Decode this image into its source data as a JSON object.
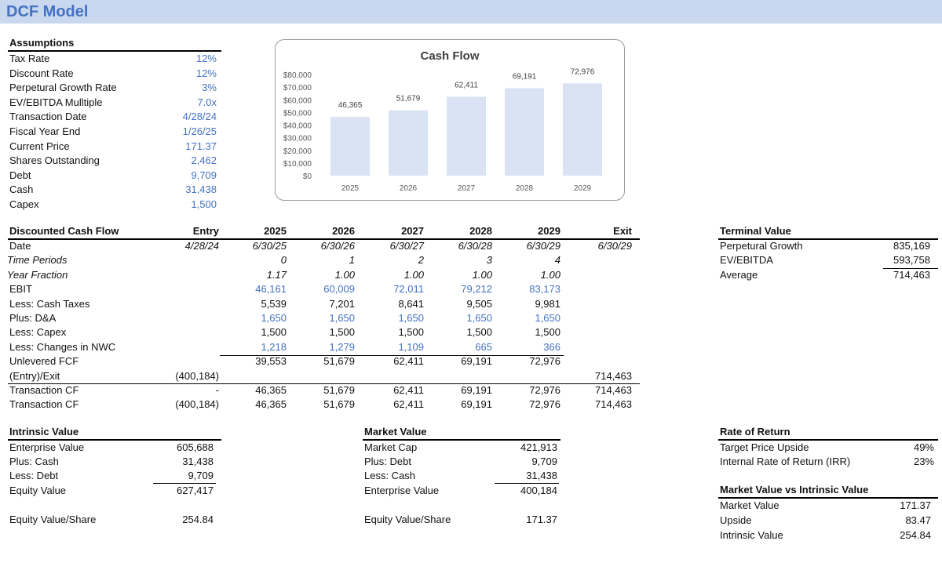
{
  "title": "DCF Model",
  "assumptions": {
    "header": "Assumptions",
    "rows": [
      {
        "label": "Tax Rate",
        "value": "12%",
        "blue": true
      },
      {
        "label": "Discount Rate",
        "value": "12%",
        "blue": true
      },
      {
        "label": "Perpetural Growth Rate",
        "value": "3%",
        "blue": true
      },
      {
        "label": "EV/EBITDA Mulltiple",
        "value": "7.0x",
        "blue": true
      },
      {
        "label": "Transaction Date",
        "value": "4/28/24",
        "blue": true
      },
      {
        "label": "Fiscal Year End",
        "value": "1/26/25",
        "blue": true
      },
      {
        "label": "Current Price",
        "value": "171.37",
        "blue": true
      },
      {
        "label": "Shares Outstanding",
        "value": "2,462",
        "blue": true
      },
      {
        "label": "Debt",
        "value": "9,709",
        "blue": true
      },
      {
        "label": "Cash",
        "value": "31,438",
        "blue": true
      },
      {
        "label": "Capex",
        "value": "1,500",
        "blue": true
      }
    ]
  },
  "chart": {
    "title": "Cash Flow",
    "color_bar": "#dae3f3",
    "y_ticks": [
      "$80,000",
      "$70,000",
      "$60,000",
      "$50,000",
      "$40,000",
      "$30,000",
      "$20,000",
      "$10,000",
      "$0"
    ],
    "data_labels": [
      "46,365",
      "51,679",
      "62,411",
      "69,191",
      "72,976"
    ]
  },
  "chart_data": {
    "type": "bar",
    "title": "Cash Flow",
    "categories": [
      "2025",
      "2026",
      "2027",
      "2028",
      "2029"
    ],
    "values": [
      46365,
      51679,
      62411,
      69191,
      72976
    ],
    "ylim": [
      0,
      80000
    ],
    "grid": false,
    "legend": "none"
  },
  "dcf": {
    "header_label": "Discounted Cash Flow",
    "columns": [
      "Entry",
      "2025",
      "2026",
      "2027",
      "2028",
      "2029",
      "Exit"
    ],
    "rows": [
      {
        "label": "Date",
        "style": "plain",
        "cells": [
          "4/28/24",
          "6/30/25",
          "6/30/26",
          "6/30/27",
          "6/30/28",
          "6/30/29",
          "6/30/29"
        ],
        "italic_cells": true
      },
      {
        "label": "Time Periods",
        "style": "italic",
        "cells": [
          "",
          "0",
          "1",
          "2",
          "3",
          "4",
          ""
        ],
        "italic_cells": true
      },
      {
        "label": "Year Fraction",
        "style": "italic",
        "cells": [
          "",
          "1.17",
          "1.00",
          "1.00",
          "1.00",
          "1.00",
          ""
        ],
        "italic_cells": true
      },
      {
        "label": "EBIT",
        "style": "plain",
        "cells": [
          "",
          "46,161",
          "60,009",
          "72,011",
          "79,212",
          "83,173",
          ""
        ],
        "blue": true
      },
      {
        "label": "Less: Cash Taxes",
        "style": "plain",
        "cells": [
          "",
          "5,539",
          "7,201",
          "8,641",
          "9,505",
          "9,981",
          ""
        ]
      },
      {
        "label": "Plus: D&A",
        "style": "plain",
        "cells": [
          "",
          "1,650",
          "1,650",
          "1,650",
          "1,650",
          "1,650",
          ""
        ],
        "blue": true
      },
      {
        "label": "Less: Capex",
        "style": "plain",
        "cells": [
          "",
          "1,500",
          "1,500",
          "1,500",
          "1,500",
          "1,500",
          ""
        ]
      },
      {
        "label": "Less: Changes in NWC",
        "style": "plain",
        "cells": [
          "",
          "1,218",
          "1,279",
          "1,109",
          "665",
          "366",
          ""
        ],
        "blue": true
      },
      {
        "label": "Unlevered FCF",
        "style": "plain",
        "cells": [
          "",
          "39,553",
          "51,679",
          "62,411",
          "69,191",
          "72,976",
          ""
        ]
      },
      {
        "label": "(Entry)/Exit",
        "style": "plain",
        "cells": [
          "(400,184)",
          "",
          "",
          "",
          "",
          "",
          "714,463"
        ]
      },
      {
        "label": "Transaction CF",
        "style": "plain",
        "cells": [
          "-",
          "46,365",
          "51,679",
          "62,411",
          "69,191",
          "72,976",
          "714,463"
        ]
      },
      {
        "label": "Transaction CF",
        "style": "plain",
        "cells": [
          "(400,184)",
          "46,365",
          "51,679",
          "62,411",
          "69,191",
          "72,976",
          "714,463"
        ]
      }
    ]
  },
  "terminal_value": {
    "header": "Terminal Value",
    "rows": [
      {
        "label": "Perpetural Growth",
        "value": "835,169"
      },
      {
        "label": "EV/EBITDA",
        "value": "593,758"
      },
      {
        "label": "Average",
        "value": "714,463"
      }
    ]
  },
  "intrinsic_value": {
    "header": "Intrinsic Value",
    "rows": [
      {
        "label": "Enterprise Value",
        "value": "605,688"
      },
      {
        "label": "Plus: Cash",
        "value": "31,438"
      },
      {
        "label": "Less: Debt",
        "value": "9,709"
      },
      {
        "label": "Equity Value",
        "value": "627,417"
      }
    ],
    "per_share": {
      "label": "Equity Value/Share",
      "value": "254.84"
    }
  },
  "market_value": {
    "header": "Market Value",
    "rows": [
      {
        "label": "Market Cap",
        "value": "421,913"
      },
      {
        "label": "Plus: Debt",
        "value": "9,709"
      },
      {
        "label": "Less: Cash",
        "value": "31,438"
      },
      {
        "label": "Enterprise Value",
        "value": "400,184"
      }
    ],
    "per_share": {
      "label": "Equity Value/Share",
      "value": "171.37"
    }
  },
  "rate_of_return": {
    "header": "Rate of Return",
    "rows": [
      {
        "label": "Target Price Upside",
        "value": "49%"
      },
      {
        "label": "Internal Rate of Return (IRR)",
        "value": "23%"
      }
    ]
  },
  "mv_vs_iv": {
    "header": "Market Value vs Intrinsic Value",
    "rows": [
      {
        "label": "Market Value",
        "value": "171.37"
      },
      {
        "label": "Upside",
        "value": "83.47"
      },
      {
        "label": "Intrinsic Value",
        "value": "254.84"
      }
    ]
  }
}
